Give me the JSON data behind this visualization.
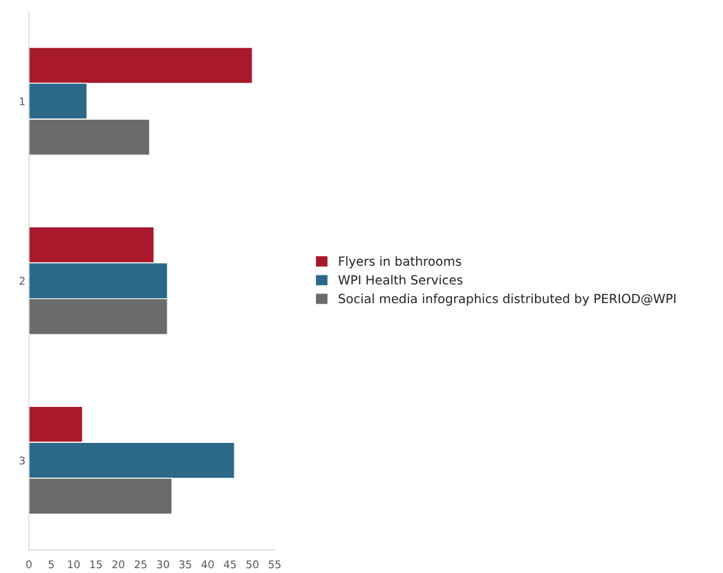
{
  "chart_data": {
    "type": "bar",
    "orientation": "horizontal",
    "categories": [
      "1",
      "2",
      "3"
    ],
    "series": [
      {
        "name": "Flyers in bathrooms",
        "color": "#a8192b",
        "values": [
          50,
          28,
          12
        ]
      },
      {
        "name": "WPI Health Services",
        "color": "#2b6889",
        "values": [
          13,
          31,
          46
        ]
      },
      {
        "name": "Social media infographics distributed by PERIOD@WPI",
        "color": "#6b6b6b",
        "values": [
          27,
          31,
          32
        ]
      }
    ],
    "xlim": [
      0,
      55
    ],
    "xticks": [
      0,
      5,
      10,
      15,
      20,
      25,
      30,
      35,
      40,
      45,
      50,
      55
    ],
    "grid": false,
    "legend": "right"
  }
}
